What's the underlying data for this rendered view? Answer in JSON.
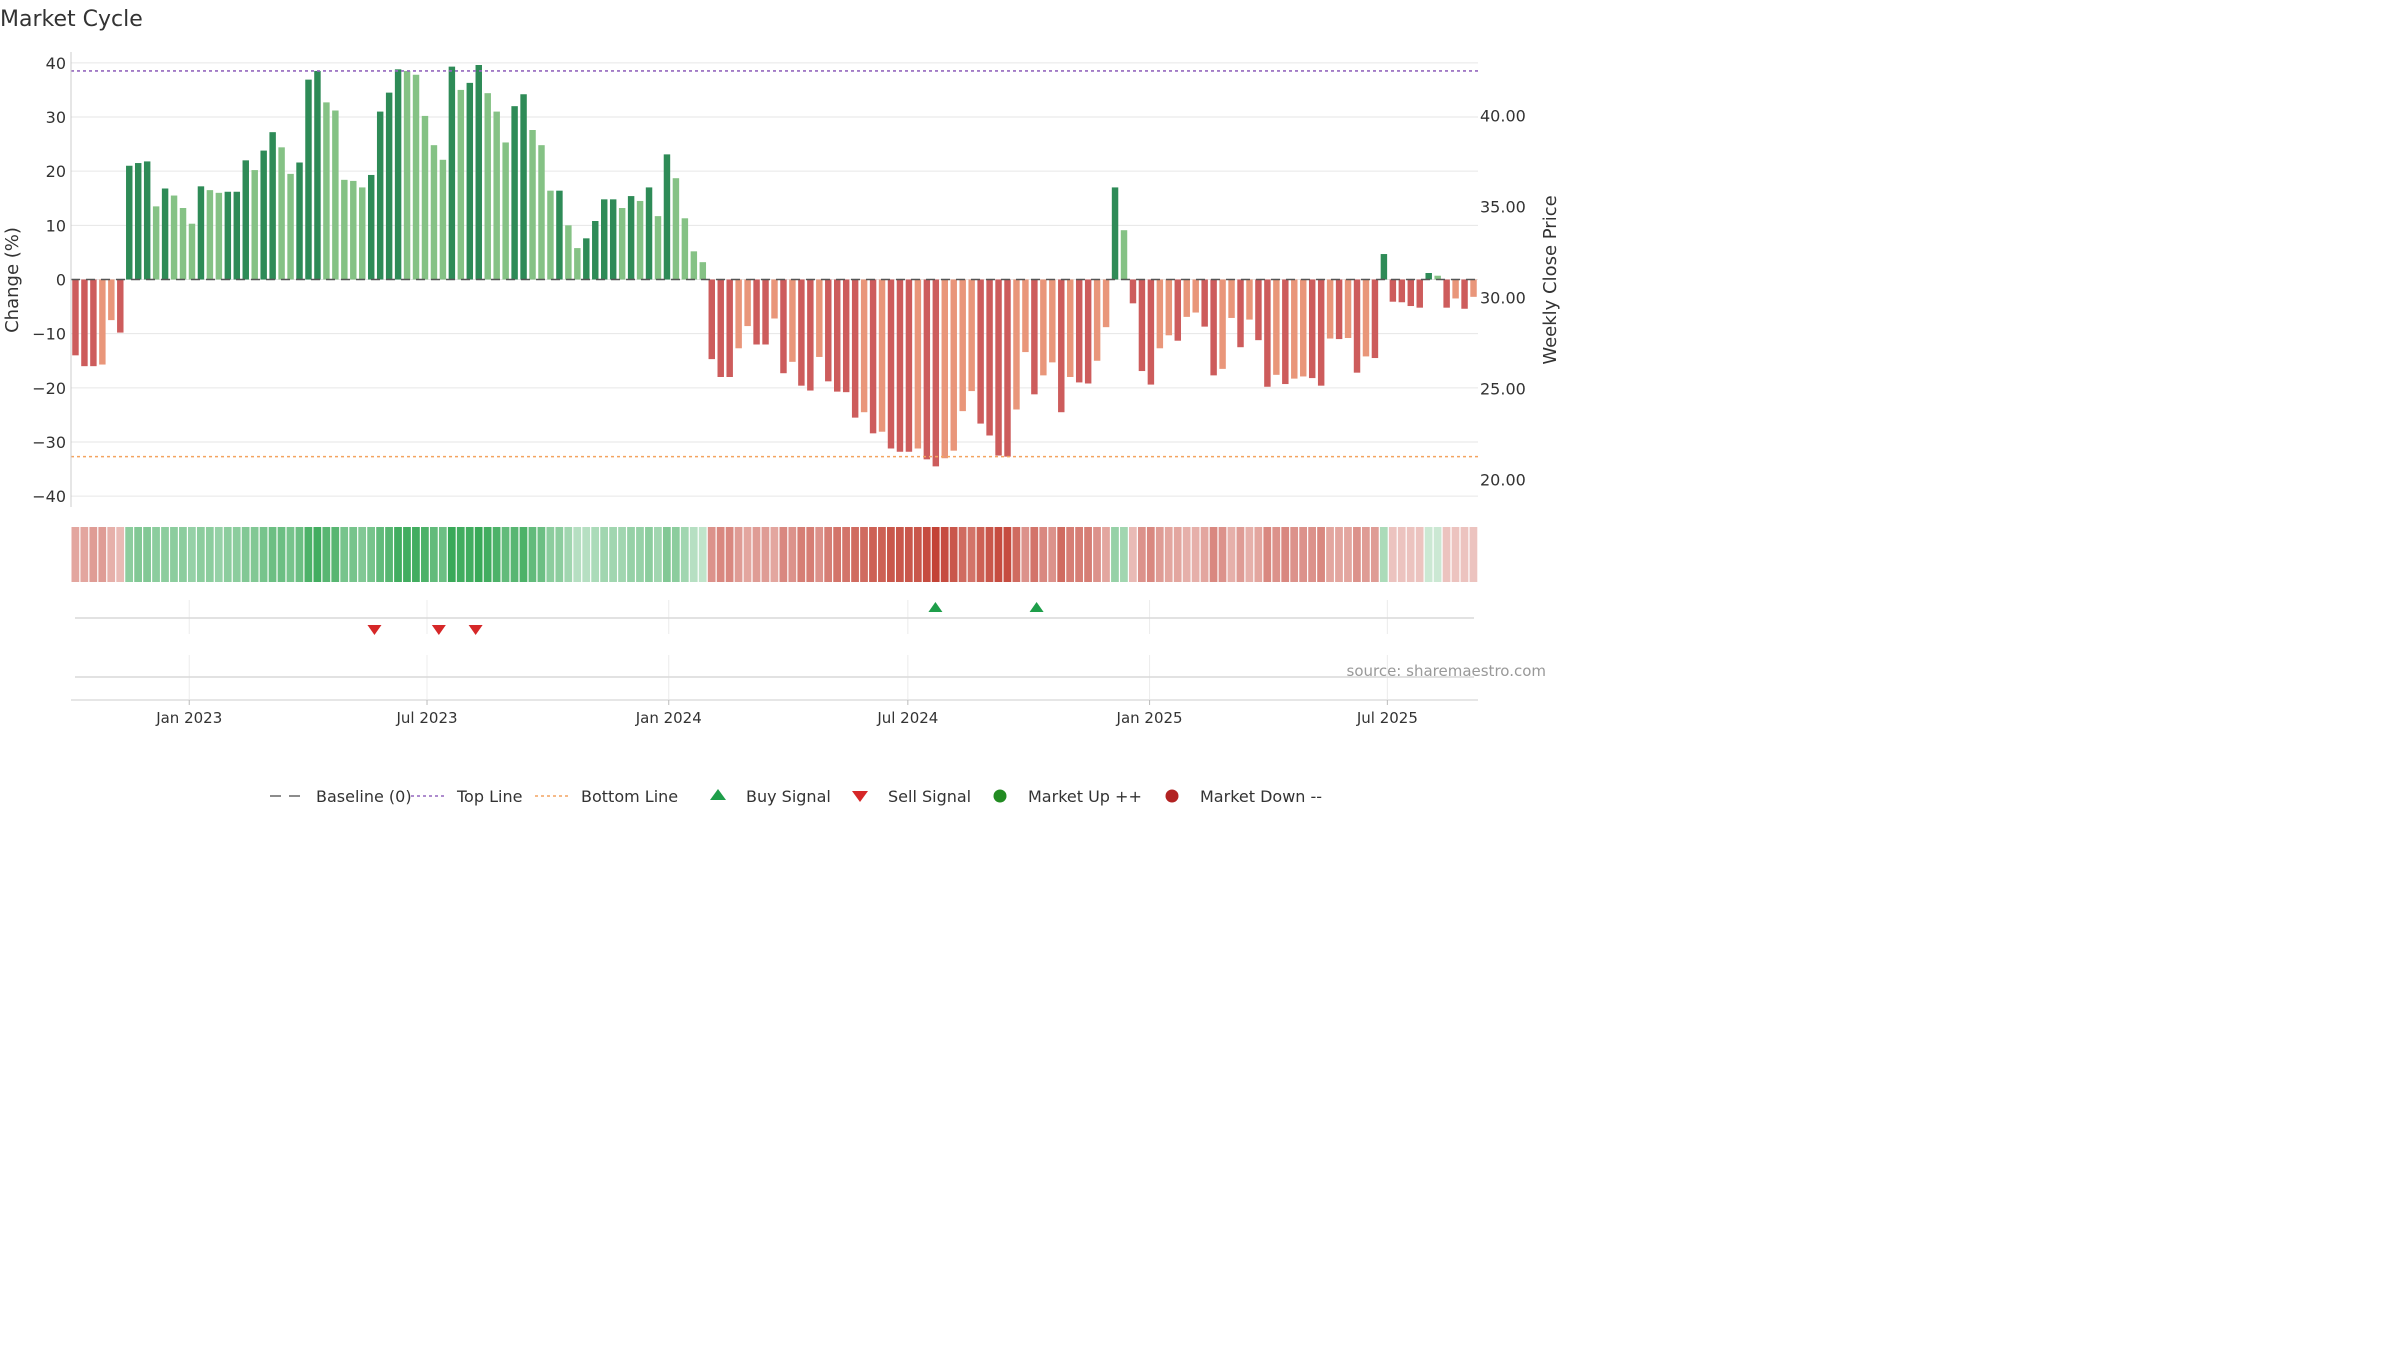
{
  "title": "Market Cycle",
  "source": "source: sharemaestro.com",
  "colors": {
    "up_strong": "#2e8b57",
    "up_weak": "#85c285",
    "down_strong": "#cd5c5c",
    "down_weak": "#e9967a",
    "top_line": "#9467bd",
    "bottom_line": "#f4a460",
    "buy": "#1e9e4a",
    "sell": "#d62728",
    "market_up": "#228b22",
    "market_down": "#b22222",
    "baseline": "#555555"
  },
  "chart_data": {
    "type": "bar",
    "ylabel": "Change (%)",
    "ylabel_right": "Weekly Close Price",
    "ylim": [
      -42,
      42
    ],
    "yticks": [
      -40,
      -30,
      -20,
      -10,
      0,
      10,
      20,
      30,
      40
    ],
    "ylim_right": [
      18.5,
      43.5
    ],
    "yticks_right": [
      "20.00",
      "25.00",
      "30.00",
      "35.00",
      "40.00"
    ],
    "top_line": 38.5,
    "bottom_line": -32.7,
    "x_start": "2022-10-03",
    "x_end": "2025-09-08",
    "xtick_labels": [
      "Jan 2023",
      "Jul 2023",
      "Jan 2024",
      "Jul 2024",
      "Jan 2025",
      "Jul 2025"
    ],
    "xtick_dates": [
      "2023-01-01",
      "2023-07-01",
      "2024-01-01",
      "2024-07-01",
      "2025-01-01",
      "2025-07-01"
    ],
    "values": [
      -14,
      -16,
      -16,
      -15.7,
      -7.5,
      -9.8,
      21,
      21.5,
      21.8,
      13.5,
      16.8,
      15.5,
      13.2,
      10.3,
      17.2,
      16.5,
      16,
      16.2,
      16.2,
      22,
      20.2,
      23.8,
      27.2,
      24.4,
      19.5,
      21.6,
      36.9,
      38.5,
      32.7,
      31.2,
      18.4,
      18.2,
      17,
      19.3,
      31,
      34.5,
      38.8,
      38.5,
      37.8,
      30.2,
      24.8,
      22.1,
      39.3,
      35,
      36.3,
      39.6,
      34.4,
      31,
      25.3,
      32,
      34.2,
      27.6,
      24.8,
      16.4,
      16.4,
      10,
      5.8,
      7.6,
      10.8,
      14.8,
      14.8,
      13.2,
      15.4,
      14.5,
      17,
      11.7,
      23.1,
      18.7,
      11.3,
      5.2,
      3.2,
      -14.7,
      -18,
      -18,
      -12.7,
      -8.6,
      -12,
      -12,
      -7.2,
      -17.3,
      -15.2,
      -19.6,
      -20.5,
      -14.3,
      -18.8,
      -20.7,
      -20.8,
      -25.5,
      -24.5,
      -28.4,
      -28.1,
      -31.2,
      -31.8,
      -31.8,
      -31.2,
      -33.2,
      -34.5,
      -33,
      -31.6,
      -24.3,
      -20.6,
      -26.6,
      -28.8,
      -32.5,
      -32.7,
      -24,
      -13.4,
      -21.2,
      -17.7,
      -15.3,
      -24.5,
      -18,
      -19,
      -19.2,
      -15,
      -8.8,
      17,
      9.1,
      -4.4,
      -16.9,
      -19.4,
      -12.7,
      -10.3,
      -11.3,
      -6.9,
      -6.1,
      -8.7,
      -17.7,
      -16.5,
      -7.1,
      -12.5,
      -7.4,
      -11.2,
      -19.8,
      -17.6,
      -19.3,
      -18.3,
      -17.9,
      -18.2,
      -19.6,
      -10.9,
      -11,
      -10.8,
      -17.2,
      -14.2,
      -14.5,
      4.7,
      -4.1,
      -4.2,
      -4.9,
      -5.2,
      1.2,
      0.7,
      -5.2,
      -3.5,
      -5.4,
      -3.2
    ],
    "strength_band": [
      0.45,
      0.45,
      0.5,
      0.5,
      0.4,
      0.35,
      0.55,
      0.6,
      0.6,
      0.55,
      0.55,
      0.55,
      0.55,
      0.5,
      0.55,
      0.55,
      0.5,
      0.55,
      0.55,
      0.6,
      0.6,
      0.65,
      0.7,
      0.7,
      0.65,
      0.7,
      0.85,
      0.9,
      0.8,
      0.8,
      0.65,
      0.65,
      0.6,
      0.65,
      0.75,
      0.8,
      0.9,
      0.9,
      0.9,
      0.85,
      0.75,
      0.7,
      0.95,
      0.9,
      0.9,
      0.95,
      0.9,
      0.85,
      0.75,
      0.8,
      0.85,
      0.75,
      0.7,
      0.55,
      0.55,
      0.45,
      0.35,
      0.35,
      0.4,
      0.45,
      0.45,
      0.45,
      0.5,
      0.5,
      0.55,
      0.45,
      0.6,
      0.55,
      0.45,
      0.35,
      0.3,
      0.55,
      0.6,
      0.6,
      0.5,
      0.45,
      0.5,
      0.5,
      0.45,
      0.6,
      0.55,
      0.65,
      0.65,
      0.55,
      0.65,
      0.7,
      0.7,
      0.75,
      0.75,
      0.8,
      0.8,
      0.85,
      0.85,
      0.85,
      0.85,
      0.9,
      0.95,
      0.9,
      0.85,
      0.75,
      0.7,
      0.8,
      0.85,
      0.9,
      0.9,
      0.75,
      0.55,
      0.7,
      0.6,
      0.55,
      0.75,
      0.65,
      0.65,
      0.65,
      0.55,
      0.45,
      0.5,
      0.45,
      0.35,
      0.55,
      0.6,
      0.5,
      0.45,
      0.45,
      0.4,
      0.4,
      0.45,
      0.6,
      0.55,
      0.4,
      0.5,
      0.4,
      0.45,
      0.6,
      0.55,
      0.6,
      0.55,
      0.55,
      0.55,
      0.6,
      0.45,
      0.45,
      0.45,
      0.55,
      0.5,
      0.5,
      0.4,
      0.3,
      0.3,
      0.3,
      0.3,
      0.25,
      0.25,
      0.3,
      0.3,
      0.3,
      0.3
    ],
    "buy_signals": [
      "2024-07-22",
      "2024-10-07"
    ],
    "sell_signals": [
      "2023-05-22",
      "2023-07-10",
      "2023-08-07"
    ],
    "legend_position": "bottom",
    "legend": [
      {
        "label": "Baseline (0)",
        "kind": "baseline"
      },
      {
        "label": "Top Line",
        "kind": "top"
      },
      {
        "label": "Bottom Line",
        "kind": "bottom"
      },
      {
        "label": "Buy Signal",
        "kind": "buy"
      },
      {
        "label": "Sell Signal",
        "kind": "sell"
      },
      {
        "label": "Market Up ++",
        "kind": "mup"
      },
      {
        "label": "Market Down --",
        "kind": "mdown"
      }
    ]
  }
}
